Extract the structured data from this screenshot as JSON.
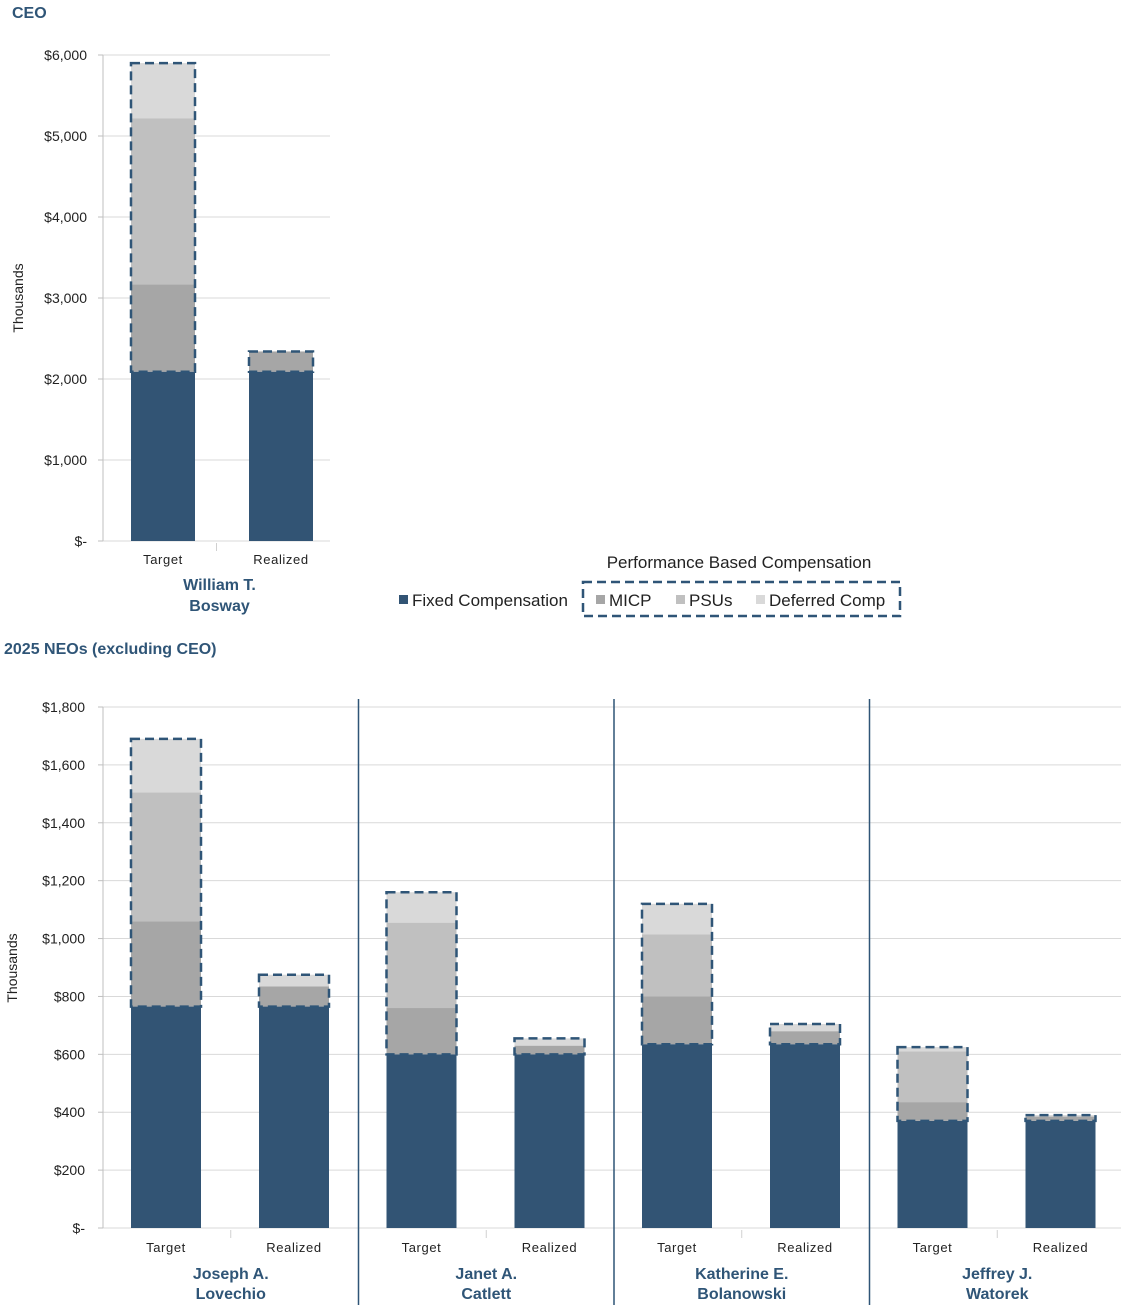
{
  "sections": {
    "ceo_title": "CEO",
    "neo_title": "2025 NEOs (excluding CEO)"
  },
  "legend": {
    "group_title": "Performance Based Compensation",
    "items": [
      {
        "label": "Fixed Compensation",
        "color": "#325474"
      },
      {
        "label": "MICP",
        "color": "#a6a6a6"
      },
      {
        "label": "PSUs",
        "color": "#c0c0c0"
      },
      {
        "label": "Deferred Comp",
        "color": "#d9d9d9"
      }
    ]
  },
  "colors": {
    "fixed": "#325474",
    "micp": "#a6a6a6",
    "psus": "#c0c0c0",
    "deferred": "#d9d9d9",
    "dash_border": "#2f5577",
    "divider": "#2f5577",
    "grid": "#d9d9d9",
    "exec_name": "#2f5577"
  },
  "chart_data": [
    {
      "type": "bar",
      "stacked": true,
      "title": "CEO",
      "ylabel": "Thousands",
      "ylim": [
        0,
        6000
      ],
      "yticks": [
        "$-",
        "$1,000",
        "$2,000",
        "$3,000",
        "$4,000",
        "$5,000",
        "$6,000"
      ],
      "groups": [
        {
          "executive": [
            "William T.",
            "Bosway"
          ],
          "bars": [
            {
              "category": "Target",
              "fixed": 2090,
              "micp": 1080,
              "psus": 2050,
              "deferred": 680
            },
            {
              "category": "Realized",
              "fixed": 2090,
              "micp": 250,
              "psus": 0,
              "deferred": 0
            }
          ]
        }
      ]
    },
    {
      "type": "bar",
      "stacked": true,
      "title": "2025 NEOs (excluding CEO)",
      "ylabel": "Thousands",
      "ylim": [
        0,
        1800
      ],
      "yticks": [
        "$-",
        "$200",
        "$400",
        "$600",
        "$800",
        "$1,000",
        "$1,200",
        "$1,400",
        "$1,600",
        "$1,800"
      ],
      "groups": [
        {
          "executive": [
            "Joseph A.",
            "Lovechio"
          ],
          "bars": [
            {
              "category": "Target",
              "fixed": 765,
              "micp": 295,
              "psus": 445,
              "deferred": 185
            },
            {
              "category": "Realized",
              "fixed": 765,
              "micp": 70,
              "psus": 0,
              "deferred": 40
            }
          ]
        },
        {
          "executive": [
            "Janet A.",
            "Catlett"
          ],
          "bars": [
            {
              "category": "Target",
              "fixed": 600,
              "micp": 160,
              "psus": 295,
              "deferred": 105
            },
            {
              "category": "Realized",
              "fixed": 600,
              "micp": 30,
              "psus": 0,
              "deferred": 25
            }
          ]
        },
        {
          "executive": [
            "Katherine E.",
            "Bolanowski"
          ],
          "bars": [
            {
              "category": "Target",
              "fixed": 635,
              "micp": 165,
              "psus": 215,
              "deferred": 105
            },
            {
              "category": "Realized",
              "fixed": 635,
              "micp": 45,
              "psus": 0,
              "deferred": 25
            }
          ]
        },
        {
          "executive": [
            "Jeffrey J.",
            "Watorek"
          ],
          "bars": [
            {
              "category": "Target",
              "fixed": 370,
              "micp": 65,
              "psus": 175,
              "deferred": 15
            },
            {
              "category": "Realized",
              "fixed": 370,
              "micp": 15,
              "psus": 0,
              "deferred": 5
            }
          ]
        }
      ]
    }
  ]
}
